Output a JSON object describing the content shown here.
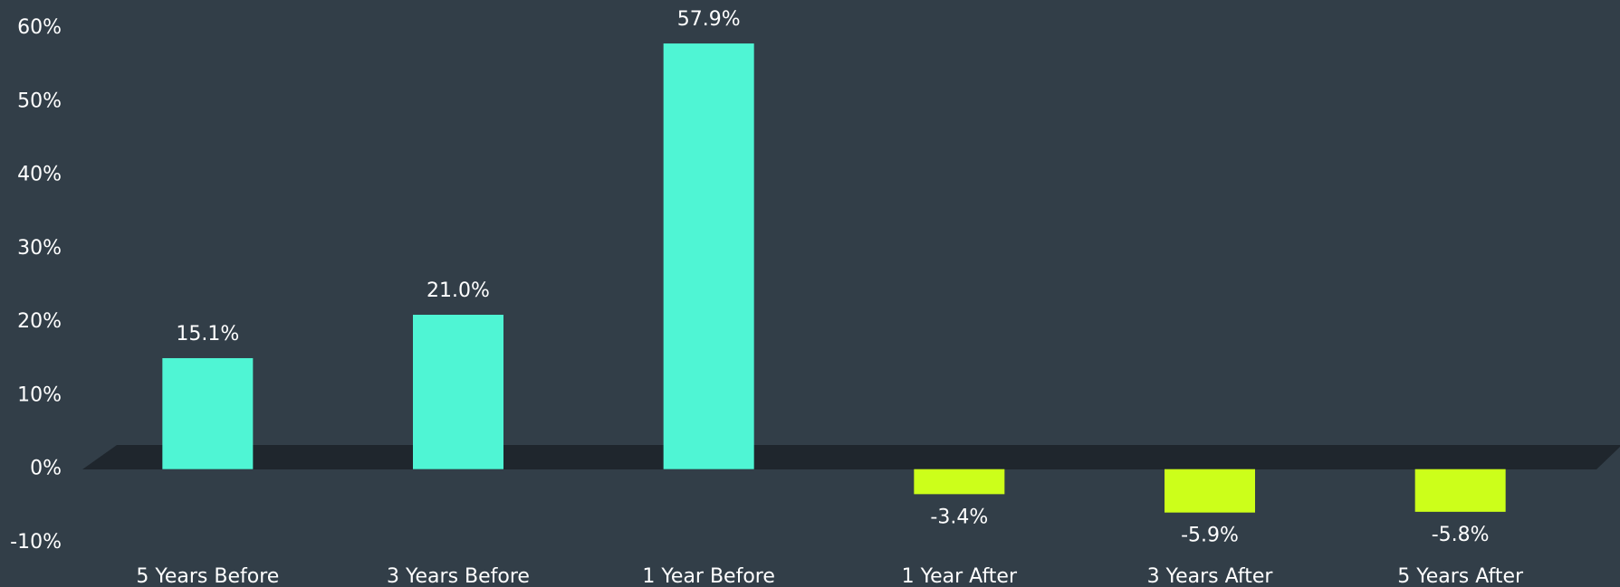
{
  "chart_data": {
    "type": "bar",
    "categories": [
      "5 Years Before",
      "3 Years Before",
      "1 Year Before",
      "1 Year After",
      "3 Years After",
      "5 Years After"
    ],
    "values": [
      15.1,
      21.0,
      57.9,
      -3.4,
      -5.9,
      -5.8
    ],
    "value_labels": [
      "15.1%",
      "21.0%",
      "57.9%",
      "-3.4%",
      "-5.9%",
      "-5.8%"
    ],
    "colors": [
      "#4ff5d4",
      "#4ff5d4",
      "#4ff5d4",
      "#ccff1a",
      "#ccff1a",
      "#ccff1a"
    ],
    "ylim": [
      -10,
      60
    ],
    "yticks": [
      {
        "value": -10,
        "label": "-10%"
      },
      {
        "value": 0,
        "label": "0%"
      },
      {
        "value": 10,
        "label": "10%"
      },
      {
        "value": 20,
        "label": "20%"
      },
      {
        "value": 30,
        "label": "30%"
      },
      {
        "value": 40,
        "label": "40%"
      },
      {
        "value": 50,
        "label": "50%"
      },
      {
        "value": 60,
        "label": "60%"
      }
    ],
    "grid": false
  }
}
